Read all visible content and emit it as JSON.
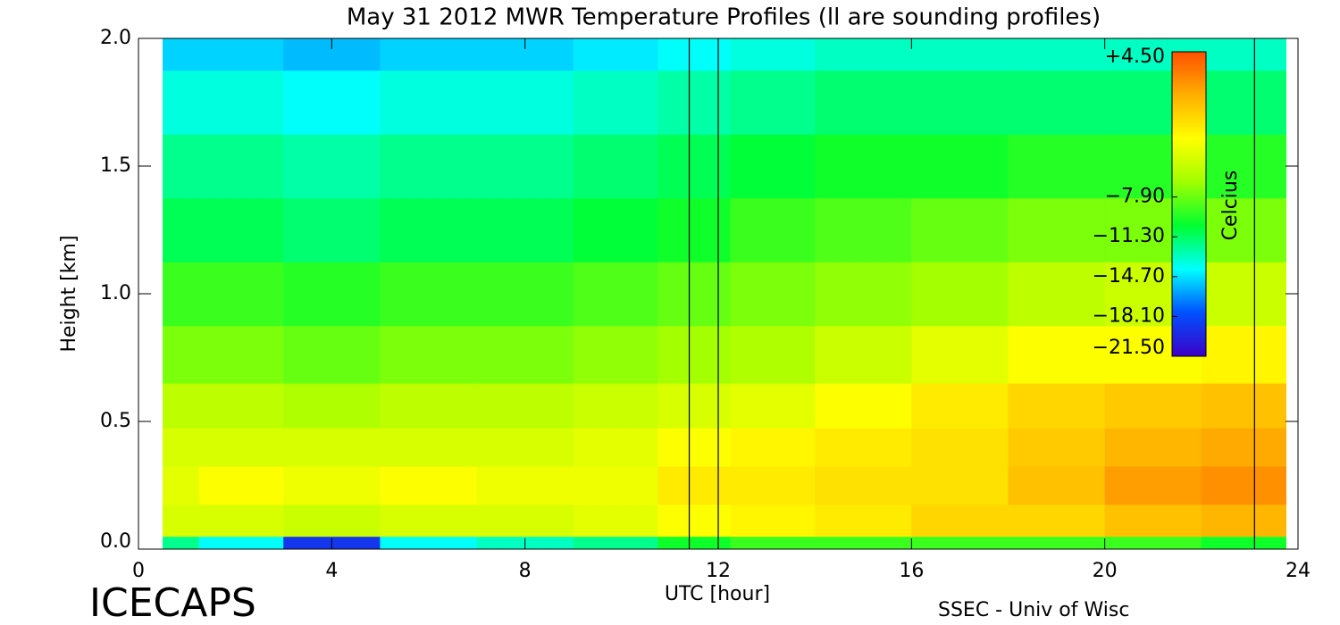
{
  "chart_data": {
    "type": "heatmap",
    "title": "May 31 2012 MWR Temperature Profiles (ll are sounding profiles)",
    "xlabel": "UTC [hour]",
    "ylabel": "Height [km]",
    "footer_left": "ICECAPS",
    "footer_right": "SSEC - Univ of Wisc",
    "xlim": [
      0,
      24
    ],
    "xticks": [
      0,
      4,
      8,
      12,
      16,
      20,
      24
    ],
    "ylim": [
      0,
      2
    ],
    "yticks": [
      {
        "value": 0,
        "label": "0.0"
      },
      0.5,
      {
        "value": 1,
        "label": "1.0"
      },
      1.5,
      {
        "value": 2,
        "label": "2.0"
      }
    ],
    "x": [
      0.5,
      2,
      4,
      6,
      8,
      10,
      11.5,
      13,
      15,
      17,
      19,
      21,
      23
    ],
    "y": [
      0,
      0.1,
      0.25,
      0.4,
      0.55,
      0.75,
      1.0,
      1.25,
      1.5,
      1.75,
      2.0
    ],
    "values": [
      [
        -12,
        -14,
        -19,
        -14,
        -13,
        -12,
        -10,
        -9,
        -9,
        -9,
        -9,
        -9,
        -10
      ],
      [
        -4.5,
        -4.5,
        -5,
        -4.5,
        -4.5,
        -4,
        -3,
        -2.5,
        -2,
        -1,
        -1,
        0,
        0.5
      ],
      [
        -4,
        -3,
        -3.5,
        -3,
        -3.5,
        -3.5,
        -2,
        -2,
        -1.5,
        -1.5,
        0,
        1.5,
        2
      ],
      [
        -4.5,
        -4.5,
        -4.5,
        -4.5,
        -4.5,
        -4,
        -3,
        -2.5,
        -2,
        -1.5,
        -0.5,
        0.5,
        1
      ],
      [
        -5.5,
        -5.5,
        -6,
        -5.5,
        -5.5,
        -5,
        -4.5,
        -4,
        -3,
        -2,
        -1,
        -0.5,
        0
      ],
      [
        -7.5,
        -7.5,
        -8,
        -7.5,
        -7.5,
        -7,
        -6.5,
        -6,
        -5,
        -4,
        -3,
        -3,
        -2.5
      ],
      [
        -9,
        -9,
        -9.5,
        -9,
        -9,
        -8.5,
        -8,
        -7.5,
        -7,
        -6.5,
        -5.5,
        -5,
        -5
      ],
      [
        -11,
        -11,
        -11.5,
        -11,
        -11,
        -10.5,
        -10,
        -9,
        -8.5,
        -8,
        -7.5,
        -7.5,
        -7.5
      ],
      [
        -12,
        -12,
        -12.5,
        -12,
        -12,
        -11.5,
        -11,
        -10.5,
        -10,
        -10,
        -9.5,
        -9.5,
        -9.5
      ],
      [
        -13.5,
        -13.5,
        -14,
        -13.5,
        -13.5,
        -13,
        -12.5,
        -12,
        -11.5,
        -11.5,
        -11.5,
        -11.5,
        -11.5
      ],
      [
        -15,
        -15,
        -15.5,
        -15,
        -15,
        -14.5,
        -14,
        -13.5,
        -13,
        -13,
        -13,
        -13,
        -13
      ]
    ],
    "soundings": [
      11.4,
      12.0,
      23.1
    ],
    "colormap": [
      "#3c00c8",
      "#0050ff",
      "#00ffff",
      "#00ff30",
      "#a0ff00",
      "#ffff00",
      "#ffb000",
      "#ff5000"
    ],
    "colorbar": {
      "label": "Celcius",
      "ticks": [
        {
          "value": 4.5,
          "label": "+4.50"
        },
        {
          "value": -7.9,
          "label": "−7.90"
        },
        {
          "value": -11.3,
          "label": "−11.30"
        },
        {
          "value": -14.7,
          "label": "−14.70"
        },
        {
          "value": -18.1,
          "label": "−18.10"
        },
        {
          "value": -21.5,
          "label": "−21.50"
        }
      ]
    }
  }
}
